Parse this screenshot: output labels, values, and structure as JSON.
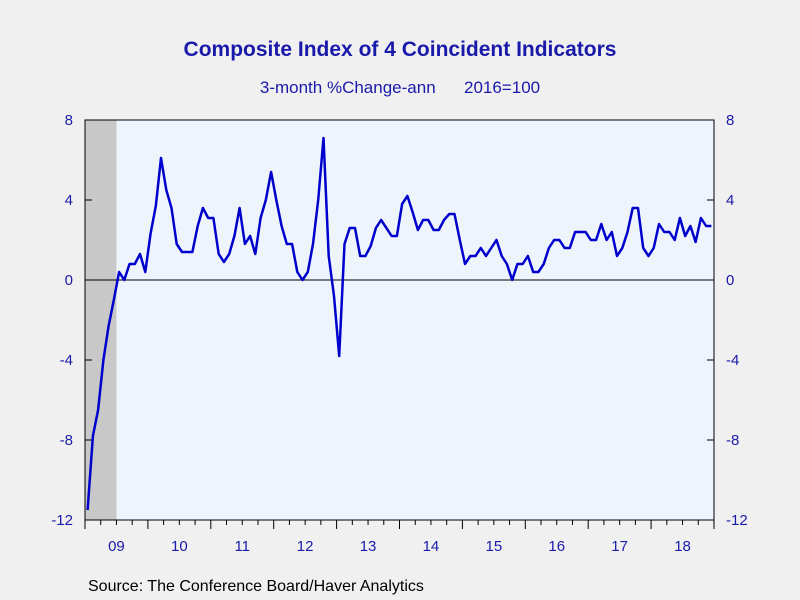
{
  "chart_data": {
    "type": "line",
    "title": "Composite Index of 4 Coincident Indicators",
    "subtitle": "3-month %Change-ann      2016=100",
    "source": "Source:  The Conference Board/Haver Analytics",
    "ylim": [
      -12,
      8
    ],
    "yticks": [
      8,
      4,
      0,
      -4,
      -8,
      -12
    ],
    "x_range": [
      2009.0,
      2019.0
    ],
    "xtick_labels": [
      "09",
      "10",
      "11",
      "12",
      "13",
      "14",
      "15",
      "16",
      "17",
      "18"
    ],
    "xtick_positions": [
      2009,
      2010,
      2011,
      2012,
      2013,
      2014,
      2015,
      2016,
      2017,
      2018
    ],
    "recession_shading": [
      2009.0,
      2009.5
    ],
    "zero_line": true,
    "colors": {
      "line": "#0000cc",
      "recession": "#c8c8c8",
      "plot_bg": "#eef4fc",
      "text": "#1a1aaa"
    },
    "series": [
      {
        "x": [
          2009.042,
          2009.125,
          2009.208,
          2009.292,
          2009.375,
          2009.458,
          2009.542,
          2009.625,
          2009.708,
          2009.792,
          2009.875,
          2009.958,
          2010.042,
          2010.125,
          2010.208,
          2010.292,
          2010.375,
          2010.458,
          2010.542,
          2010.625,
          2010.708,
          2010.792,
          2010.875,
          2010.958,
          2011.042,
          2011.125,
          2011.208,
          2011.292,
          2011.375,
          2011.458,
          2011.542,
          2011.625,
          2011.708,
          2011.792,
          2011.875,
          2011.958,
          2012.042,
          2012.125,
          2012.208,
          2012.292,
          2012.375,
          2012.458,
          2012.542,
          2012.625,
          2012.708,
          2012.792,
          2012.875,
          2012.958,
          2013.042,
          2013.125,
          2013.208,
          2013.292,
          2013.375,
          2013.458,
          2013.542,
          2013.625,
          2013.708,
          2013.792,
          2013.875,
          2013.958,
          2014.042,
          2014.125,
          2014.208,
          2014.292,
          2014.375,
          2014.458,
          2014.542,
          2014.625,
          2014.708,
          2014.792,
          2014.875,
          2014.958,
          2015.042,
          2015.125,
          2015.208,
          2015.292,
          2015.375,
          2015.458,
          2015.542,
          2015.625,
          2015.708,
          2015.792,
          2015.875,
          2015.958,
          2016.042,
          2016.125,
          2016.208,
          2016.292,
          2016.375,
          2016.458,
          2016.542,
          2016.625,
          2016.708,
          2016.792,
          2016.875,
          2016.958,
          2017.042,
          2017.125,
          2017.208,
          2017.292,
          2017.375,
          2017.458,
          2017.542,
          2017.625,
          2017.708,
          2017.792,
          2017.875,
          2017.958,
          2018.042,
          2018.125,
          2018.208,
          2018.292,
          2018.375,
          2018.458,
          2018.542,
          2018.625,
          2018.708,
          2018.792,
          2018.875,
          2018.958
        ],
        "y": [
          -11.5,
          -7.8,
          -6.5,
          -4.0,
          -2.3,
          -1.0,
          0.4,
          0.0,
          0.8,
          0.8,
          1.3,
          0.4,
          2.3,
          3.7,
          6.1,
          4.5,
          3.6,
          1.8,
          1.4,
          1.4,
          1.4,
          2.7,
          3.6,
          3.1,
          3.1,
          1.3,
          0.9,
          1.3,
          2.2,
          3.6,
          1.8,
          2.2,
          1.3,
          3.1,
          4.0,
          5.4,
          4.0,
          2.7,
          1.8,
          1.8,
          0.4,
          0.0,
          0.4,
          1.8,
          4.0,
          7.1,
          1.2,
          -0.8,
          -3.8,
          1.8,
          2.6,
          2.6,
          1.2,
          1.2,
          1.7,
          2.6,
          3.0,
          2.6,
          2.2,
          2.2,
          3.8,
          4.2,
          3.4,
          2.5,
          3.0,
          3.0,
          2.5,
          2.5,
          3.0,
          3.3,
          3.3,
          2.0,
          0.8,
          1.2,
          1.2,
          1.6,
          1.2,
          1.6,
          2.0,
          1.2,
          0.8,
          0.0,
          0.8,
          0.8,
          1.2,
          0.4,
          0.4,
          0.8,
          1.6,
          2.0,
          2.0,
          1.6,
          1.6,
          2.4,
          2.4,
          2.4,
          2.0,
          2.0,
          2.8,
          2.0,
          2.4,
          1.2,
          1.6,
          2.4,
          3.6,
          3.6,
          1.6,
          1.2,
          1.6,
          2.8,
          2.4,
          2.4,
          2.0,
          3.1,
          2.2,
          2.7,
          1.9,
          3.1,
          2.7,
          2.7
        ]
      }
    ]
  }
}
